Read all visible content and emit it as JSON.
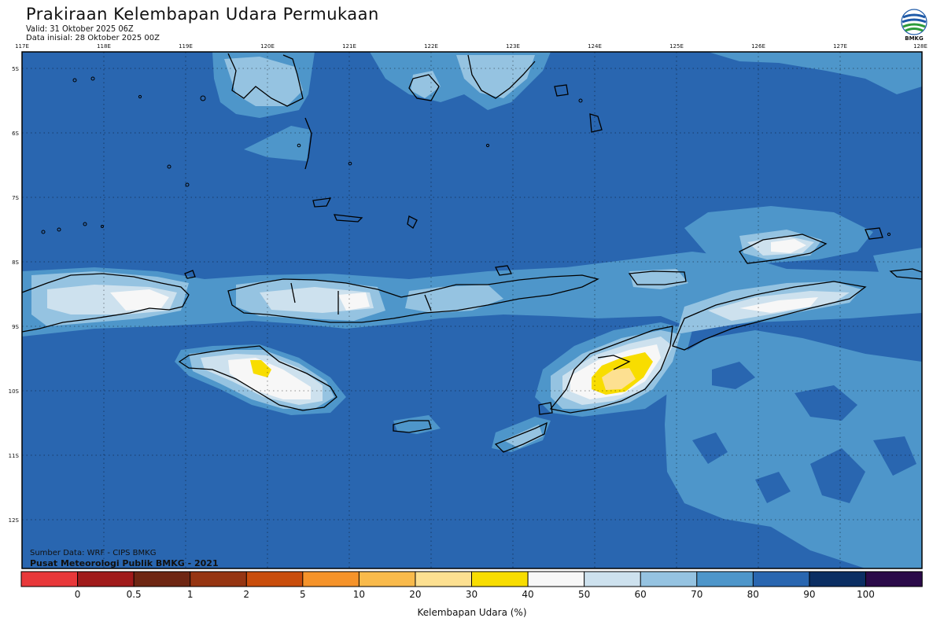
{
  "header": {
    "title": "Prakiraan Kelembapan Udara Permukaan",
    "valid": "Valid: 31 Oktober 2025 06Z",
    "initial": "Data inisial: 28 Oktober 2025 00Z",
    "logo_text": "BMKG"
  },
  "map": {
    "longitude_labels": [
      "117E",
      "118E",
      "119E",
      "120E",
      "121E",
      "122E",
      "123E",
      "124E",
      "125E",
      "126E",
      "127E",
      "128E"
    ],
    "latitude_labels": [
      "5S",
      "6S",
      "7S",
      "8S",
      "9S",
      "10S",
      "11S",
      "12S"
    ],
    "credits": {
      "source": "Sumber Data: WRF - CIPS BMKG",
      "org": "Pusat Meteorologi Publik BMKG - 2021"
    }
  },
  "legend": {
    "title": "Kelembapan Udara (%)",
    "ticks": [
      "0",
      "0.5",
      "1",
      "2",
      "5",
      "10",
      "20",
      "30",
      "40",
      "50",
      "60",
      "70",
      "80",
      "90",
      "100"
    ],
    "colors": [
      "#e8383a",
      "#a01b1b",
      "#6e2613",
      "#963512",
      "#c94d0c",
      "#f5932a",
      "#f9ba4b",
      "#fde091",
      "#f8dd00",
      "#f7f7f7",
      "#cde1ee",
      "#95c3e1",
      "#4e96ca",
      "#2966b0",
      "#0b2e63",
      "#2b0a49"
    ]
  },
  "colors": {
    "ocean": "#2966b0",
    "band_70_80": "#4e96ca",
    "band_60_70": "#95c3e1",
    "band_50_60": "#cde1ee",
    "band_40_50": "#f7f7f7",
    "band_30_40": "#f8dd00",
    "band_20_30": "#fde091"
  }
}
